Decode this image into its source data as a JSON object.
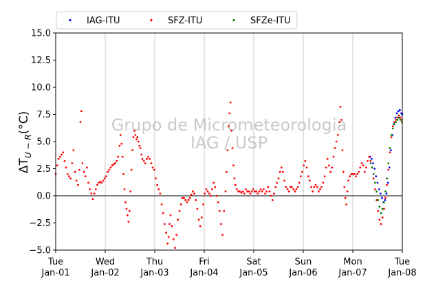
{
  "chart_data": {
    "type": "scatter",
    "title": "",
    "xlabel": "",
    "ylabel": "ΔT",
    "ylabel_subscript": "U − R",
    "ylabel_unit": "(°C)",
    "ylim": [
      -5,
      15
    ],
    "yticks": [
      -5.0,
      -2.5,
      0.0,
      2.5,
      5.0,
      7.5,
      10.0,
      12.5,
      15.0
    ],
    "ytick_labels": [
      "−5.0",
      "−2.5",
      "0.0",
      "2.5",
      "5.0",
      "7.5",
      "10.0",
      "12.5",
      "15.0"
    ],
    "xlim": [
      0,
      7
    ],
    "x_unit": "days since Tue Jan-01",
    "xticks": [
      {
        "day": 0,
        "line1": "Tue",
        "line2": "Jan-01"
      },
      {
        "day": 1,
        "line1": "Wed",
        "line2": "Jan-02"
      },
      {
        "day": 2,
        "line1": "Thu",
        "line2": "Jan-03"
      },
      {
        "day": 3,
        "line1": "Fri",
        "line2": "Jan-04"
      },
      {
        "day": 4,
        "line1": "Sat",
        "line2": "Jan-05"
      },
      {
        "day": 5,
        "line1": "Sun",
        "line2": "Jan-06"
      },
      {
        "day": 6,
        "line1": "Mon",
        "line2": "Jan-07"
      },
      {
        "day": 7,
        "line1": "Tue",
        "line2": "Jan-08"
      }
    ],
    "grid": "vertical",
    "zero_line": true,
    "legend_position": "above plot, horizontal",
    "watermark": [
      "Grupo de Micrometeorologia",
      "IAG / USP"
    ],
    "series": [
      {
        "name": "IAG-ITU",
        "color": "#0000ff",
        "points": [
          [
            6.35,
            3.6
          ],
          [
            6.38,
            3.4
          ],
          [
            6.41,
            3.0
          ],
          [
            6.44,
            2.5
          ],
          [
            6.47,
            1.8
          ],
          [
            6.5,
            1.2
          ],
          [
            6.53,
            0.6
          ],
          [
            6.56,
            0.2
          ],
          [
            6.59,
            -0.2
          ],
          [
            6.62,
            -0.6
          ],
          [
            6.65,
            -0.4
          ],
          [
            6.68,
            0.2
          ],
          [
            6.71,
            1.2
          ],
          [
            6.74,
            2.6
          ],
          [
            6.77,
            4.2
          ],
          [
            6.8,
            5.6
          ],
          [
            6.83,
            6.6
          ],
          [
            6.86,
            7.2
          ],
          [
            6.89,
            7.6
          ],
          [
            6.92,
            7.8
          ],
          [
            6.95,
            7.9
          ],
          [
            6.98,
            7.6
          ],
          [
            7.0,
            7.5
          ]
        ]
      },
      {
        "name": "SFZ-ITU",
        "color": "#ff0000",
        "points": [
          [
            0.0,
            2.0
          ],
          [
            0.03,
            2.8
          ],
          [
            0.06,
            3.4
          ],
          [
            0.09,
            3.6
          ],
          [
            0.12,
            3.8
          ],
          [
            0.15,
            4.0
          ],
          [
            0.18,
            3.2
          ],
          [
            0.21,
            2.6
          ],
          [
            0.24,
            2.0
          ],
          [
            0.27,
            1.8
          ],
          [
            0.3,
            1.6
          ],
          [
            0.33,
            3.0
          ],
          [
            0.36,
            4.2
          ],
          [
            0.39,
            2.2
          ],
          [
            0.42,
            1.4
          ],
          [
            0.45,
            1.0
          ],
          [
            0.48,
            2.4
          ],
          [
            0.5,
            6.8
          ],
          [
            0.52,
            7.8
          ],
          [
            0.54,
            3.0
          ],
          [
            0.57,
            2.2
          ],
          [
            0.6,
            1.8
          ],
          [
            0.63,
            2.6
          ],
          [
            0.66,
            1.2
          ],
          [
            0.69,
            0.6
          ],
          [
            0.72,
            0.2
          ],
          [
            0.75,
            -0.3
          ],
          [
            0.78,
            0.2
          ],
          [
            0.81,
            0.6
          ],
          [
            0.84,
            1.0
          ],
          [
            0.87,
            1.2
          ],
          [
            0.9,
            1.3
          ],
          [
            0.93,
            1.2
          ],
          [
            0.96,
            1.4
          ],
          [
            0.99,
            1.6
          ],
          [
            1.02,
            1.8
          ],
          [
            1.05,
            2.2
          ],
          [
            1.08,
            2.4
          ],
          [
            1.11,
            2.6
          ],
          [
            1.14,
            2.8
          ],
          [
            1.17,
            2.9
          ],
          [
            1.2,
            3.0
          ],
          [
            1.23,
            3.2
          ],
          [
            1.26,
            3.6
          ],
          [
            1.29,
            4.6
          ],
          [
            1.31,
            5.6
          ],
          [
            1.33,
            4.8
          ],
          [
            1.35,
            3.6
          ],
          [
            1.37,
            2.0
          ],
          [
            1.39,
            0.6
          ],
          [
            1.41,
            -0.6
          ],
          [
            1.43,
            -1.2
          ],
          [
            1.45,
            -1.8
          ],
          [
            1.47,
            -2.4
          ],
          [
            1.49,
            -1.4
          ],
          [
            1.51,
            0.4
          ],
          [
            1.53,
            2.4
          ],
          [
            1.55,
            4.2
          ],
          [
            1.57,
            5.4
          ],
          [
            1.59,
            6.0
          ],
          [
            1.61,
            5.6
          ],
          [
            1.63,
            5.2
          ],
          [
            1.65,
            5.4
          ],
          [
            1.67,
            5.0
          ],
          [
            1.69,
            4.6
          ],
          [
            1.71,
            4.4
          ],
          [
            1.73,
            3.8
          ],
          [
            1.75,
            3.4
          ],
          [
            1.78,
            3.2
          ],
          [
            1.81,
            3.0
          ],
          [
            1.84,
            3.4
          ],
          [
            1.87,
            3.6
          ],
          [
            1.9,
            3.4
          ],
          [
            1.93,
            3.0
          ],
          [
            1.96,
            2.6
          ],
          [
            1.99,
            2.4
          ],
          [
            2.02,
            1.6
          ],
          [
            2.05,
            1.0
          ],
          [
            2.08,
            0.6
          ],
          [
            2.11,
            0.2
          ],
          [
            2.14,
            -0.8
          ],
          [
            2.17,
            -1.6
          ],
          [
            2.2,
            -2.6
          ],
          [
            2.23,
            -3.4
          ],
          [
            2.26,
            -4.4
          ],
          [
            2.28,
            -3.8
          ],
          [
            2.3,
            -2.6
          ],
          [
            2.32,
            -1.8
          ],
          [
            2.35,
            -2.8
          ],
          [
            2.38,
            -4.0
          ],
          [
            2.41,
            -4.8
          ],
          [
            2.44,
            -3.6
          ],
          [
            2.47,
            -2.2
          ],
          [
            2.5,
            -1.4
          ],
          [
            2.53,
            -0.8
          ],
          [
            2.56,
            -0.2
          ],
          [
            2.59,
            -0.2
          ],
          [
            2.62,
            -0.4
          ],
          [
            2.65,
            -0.6
          ],
          [
            2.68,
            -0.4
          ],
          [
            2.71,
            -0.2
          ],
          [
            2.74,
            0.1
          ],
          [
            2.77,
            0.4
          ],
          [
            2.8,
            0.2
          ],
          [
            2.83,
            -0.4
          ],
          [
            2.86,
            -1.2
          ],
          [
            2.89,
            -2.2
          ],
          [
            2.92,
            -2.8
          ],
          [
            2.95,
            -2.0
          ],
          [
            2.98,
            -0.8
          ],
          [
            3.01,
            0.2
          ],
          [
            3.04,
            0.6
          ],
          [
            3.07,
            0.4
          ],
          [
            3.1,
            0.2
          ],
          [
            3.13,
            0.0
          ],
          [
            3.16,
            0.6
          ],
          [
            3.19,
            1.2
          ],
          [
            3.22,
            0.8
          ],
          [
            3.25,
            0.0
          ],
          [
            3.28,
            -0.6
          ],
          [
            3.31,
            -1.4
          ],
          [
            3.34,
            -2.6
          ],
          [
            3.37,
            -3.6
          ],
          [
            3.4,
            -1.4
          ],
          [
            3.43,
            0.4
          ],
          [
            3.45,
            2.2
          ],
          [
            3.47,
            4.2
          ],
          [
            3.49,
            6.4
          ],
          [
            3.51,
            7.6
          ],
          [
            3.53,
            8.6
          ],
          [
            3.55,
            6.0
          ],
          [
            3.57,
            4.4
          ],
          [
            3.59,
            2.8
          ],
          [
            3.61,
            1.6
          ],
          [
            3.63,
            1.0
          ],
          [
            3.66,
            0.6
          ],
          [
            3.69,
            0.4
          ],
          [
            3.72,
            0.4
          ],
          [
            3.75,
            0.3
          ],
          [
            3.78,
            0.4
          ],
          [
            3.81,
            0.2
          ],
          [
            3.84,
            0.6
          ],
          [
            3.87,
            0.4
          ],
          [
            3.9,
            0.4
          ],
          [
            3.93,
            0.2
          ],
          [
            3.96,
            0.4
          ],
          [
            3.99,
            0.6
          ],
          [
            4.02,
            0.4
          ],
          [
            4.05,
            0.4
          ],
          [
            4.08,
            0.2
          ],
          [
            4.11,
            0.4
          ],
          [
            4.14,
            0.6
          ],
          [
            4.17,
            0.4
          ],
          [
            4.2,
            0.6
          ],
          [
            4.23,
            0.2
          ],
          [
            4.26,
            0.4
          ],
          [
            4.29,
            0.8
          ],
          [
            4.32,
            0.4
          ],
          [
            4.35,
            0.0
          ],
          [
            4.38,
            -0.4
          ],
          [
            4.41,
            0.2
          ],
          [
            4.44,
            0.8
          ],
          [
            4.47,
            1.2
          ],
          [
            4.5,
            1.6
          ],
          [
            4.53,
            2.2
          ],
          [
            4.56,
            2.6
          ],
          [
            4.59,
            2.2
          ],
          [
            4.62,
            1.4
          ],
          [
            4.65,
            0.8
          ],
          [
            4.68,
            0.6
          ],
          [
            4.71,
            0.4
          ],
          [
            4.74,
            0.8
          ],
          [
            4.77,
            0.8
          ],
          [
            4.8,
            0.6
          ],
          [
            4.83,
            0.4
          ],
          [
            4.86,
            0.6
          ],
          [
            4.89,
            0.8
          ],
          [
            4.92,
            1.2
          ],
          [
            4.95,
            1.8
          ],
          [
            4.98,
            2.2
          ],
          [
            5.01,
            2.8
          ],
          [
            5.04,
            3.2
          ],
          [
            5.07,
            2.6
          ],
          [
            5.1,
            1.8
          ],
          [
            5.13,
            1.4
          ],
          [
            5.16,
            0.8
          ],
          [
            5.19,
            0.4
          ],
          [
            5.22,
            0.8
          ],
          [
            5.25,
            1.0
          ],
          [
            5.28,
            0.8
          ],
          [
            5.31,
            0.4
          ],
          [
            5.34,
            0.6
          ],
          [
            5.37,
            0.8
          ],
          [
            5.4,
            1.2
          ],
          [
            5.43,
            1.8
          ],
          [
            5.46,
            2.6
          ],
          [
            5.49,
            3.4
          ],
          [
            5.52,
            2.8
          ],
          [
            5.55,
            2.2
          ],
          [
            5.58,
            2.6
          ],
          [
            5.61,
            3.6
          ],
          [
            5.64,
            4.4
          ],
          [
            5.67,
            5.0
          ],
          [
            5.7,
            5.6
          ],
          [
            5.73,
            6.8
          ],
          [
            5.75,
            8.2
          ],
          [
            5.77,
            7.0
          ],
          [
            5.79,
            4.2
          ],
          [
            5.81,
            2.2
          ],
          [
            5.83,
            0.8
          ],
          [
            5.85,
            -0.2
          ],
          [
            5.87,
            -0.8
          ],
          [
            5.89,
            0.4
          ],
          [
            5.91,
            1.4
          ],
          [
            5.94,
            1.8
          ],
          [
            5.97,
            2.0
          ],
          [
            6.0,
            2.0
          ],
          [
            6.03,
            2.0
          ],
          [
            6.06,
            1.8
          ],
          [
            6.09,
            2.0
          ],
          [
            6.12,
            2.2
          ],
          [
            6.15,
            2.6
          ],
          [
            6.18,
            3.0
          ],
          [
            6.21,
            2.8
          ],
          [
            6.24,
            2.2
          ],
          [
            6.27,
            2.6
          ],
          [
            6.3,
            3.2
          ],
          [
            6.33,
            3.6
          ],
          [
            6.36,
            3.2
          ],
          [
            6.39,
            2.6
          ],
          [
            6.42,
            1.6
          ],
          [
            6.45,
            0.6
          ],
          [
            6.48,
            -0.4
          ],
          [
            6.51,
            -1.4
          ],
          [
            6.54,
            -2.2
          ],
          [
            6.57,
            -2.6
          ],
          [
            6.6,
            -2.0
          ],
          [
            6.63,
            -1.2
          ],
          [
            6.66,
            -0.2
          ],
          [
            6.69,
            1.0
          ],
          [
            6.72,
            2.4
          ],
          [
            6.75,
            4.0
          ],
          [
            6.78,
            5.4
          ],
          [
            6.81,
            6.4
          ],
          [
            6.84,
            6.8
          ],
          [
            6.87,
            7.0
          ],
          [
            6.9,
            7.2
          ],
          [
            6.93,
            7.4
          ],
          [
            6.96,
            7.2
          ],
          [
            6.99,
            7.0
          ]
        ]
      },
      {
        "name": "SFZe-ITU",
        "color": "#008000",
        "points": [
          [
            6.36,
            3.0
          ],
          [
            6.39,
            2.6
          ],
          [
            6.42,
            2.0
          ],
          [
            6.45,
            1.2
          ],
          [
            6.48,
            0.4
          ],
          [
            6.51,
            -0.4
          ],
          [
            6.54,
            -1.0
          ],
          [
            6.57,
            -1.6
          ],
          [
            6.6,
            -1.2
          ],
          [
            6.63,
            -0.6
          ],
          [
            6.66,
            0.4
          ],
          [
            6.69,
            1.6
          ],
          [
            6.72,
            3.0
          ],
          [
            6.75,
            4.4
          ],
          [
            6.78,
            5.6
          ],
          [
            6.81,
            6.2
          ],
          [
            6.84,
            6.6
          ],
          [
            6.87,
            6.8
          ],
          [
            6.9,
            7.0
          ],
          [
            6.93,
            7.2
          ],
          [
            6.96,
            7.0
          ],
          [
            6.99,
            6.8
          ]
        ]
      }
    ]
  }
}
